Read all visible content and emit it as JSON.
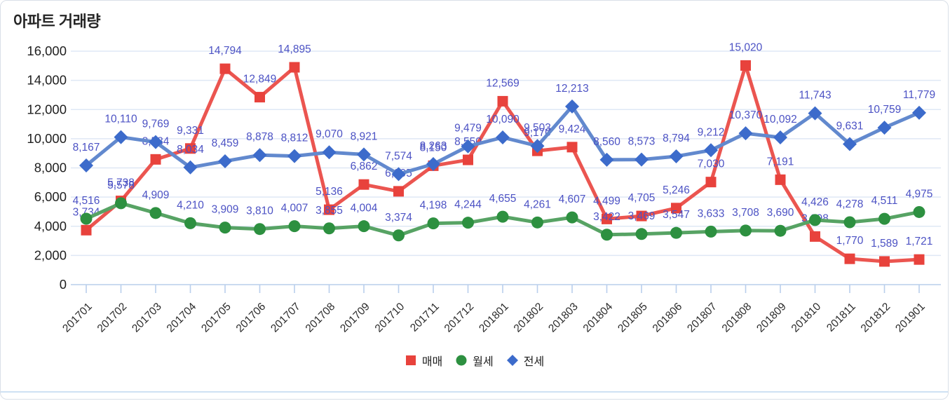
{
  "chart_data": {
    "type": "line",
    "title": "아파트 거래량",
    "categories": [
      "201701",
      "201702",
      "201703",
      "201704",
      "201705",
      "201706",
      "201707",
      "201708",
      "201709",
      "201710",
      "201711",
      "201712",
      "201801",
      "201802",
      "201803",
      "201804",
      "201805",
      "201806",
      "201807",
      "201808",
      "201809",
      "201810",
      "201811",
      "201812",
      "201901"
    ],
    "series": [
      {
        "key": "maemae",
        "name": "매매",
        "marker": "square",
        "marker_color": "#e8423c",
        "line_color": "#eb5550",
        "values": [
          3734,
          5738,
          8584,
          9331,
          14794,
          12849,
          14895,
          5136,
          6862,
          6395,
          8150,
          8550,
          12569,
          9170,
          9424,
          4499,
          4705,
          5246,
          7030,
          15020,
          7191,
          3298,
          1770,
          1589,
          1721
        ]
      },
      {
        "key": "wolse",
        "name": "월세",
        "marker": "circle",
        "marker_color": "#2d9040",
        "line_color": "#57a364",
        "values": [
          4516,
          5578,
          4909,
          4210,
          3909,
          3810,
          4007,
          3855,
          4004,
          3374,
          4198,
          4244,
          4655,
          4261,
          4607,
          3422,
          3469,
          3547,
          3633,
          3708,
          3690,
          4426,
          4278,
          4511,
          4975
        ]
      },
      {
        "key": "jeonse",
        "name": "전세",
        "marker": "diamond",
        "marker_color": "#3c6bcb",
        "line_color": "#6289ce",
        "values": [
          8167,
          10110,
          9769,
          8034,
          8459,
          8878,
          8812,
          9070,
          8921,
          7574,
          8263,
          9479,
          10090,
          9503,
          12213,
          8560,
          8573,
          8794,
          9212,
          10370,
          10092,
          11743,
          9631,
          10759,
          11779
        ]
      }
    ],
    "y_axis": {
      "tick_values": [
        0,
        2000,
        4000,
        6000,
        8000,
        10000,
        12000,
        14000,
        16000
      ],
      "tick_labels": [
        "0",
        "2,000",
        "4,000",
        "6,000",
        "8,000",
        "10,000",
        "12,000",
        "14,000",
        "16,000"
      ],
      "ylim": [
        0,
        16000
      ]
    },
    "legend_position": "bottom",
    "grid": "horizontal",
    "data_label_color": "#4c52c4",
    "axis_text_color": "#1f1f1f",
    "grid_color": "#dfe8f5",
    "axis_line_color": "#b9cfec"
  }
}
